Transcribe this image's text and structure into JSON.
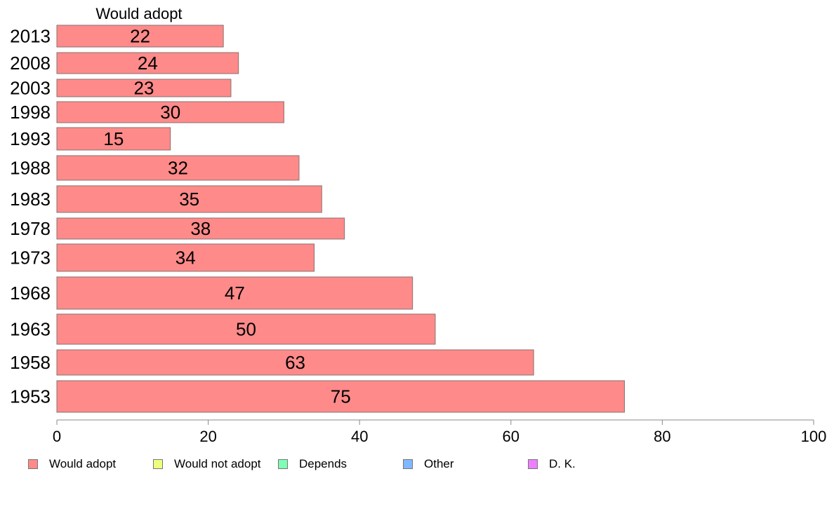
{
  "chart_data": {
    "type": "bar",
    "orientation": "horizontal",
    "series_title": "Would adopt",
    "categories": [
      "2013",
      "2008",
      "2003",
      "1998",
      "1993",
      "1988",
      "1983",
      "1978",
      "1973",
      "1968",
      "1963",
      "1958",
      "1953"
    ],
    "series": [
      {
        "name": "Would adopt",
        "values": [
          22,
          24,
          23,
          30,
          15,
          32,
          35,
          38,
          34,
          47,
          50,
          63,
          75
        ]
      }
    ],
    "data_labels": [
      "22",
      "24",
      "23",
      "30",
      "15",
      "32",
      "35",
      "38",
      "34",
      "47",
      "50",
      "63",
      "75"
    ],
    "xlim": [
      0,
      100
    ],
    "x_ticks": [
      "0",
      "20",
      "40",
      "60",
      "80",
      "100"
    ],
    "grid": false,
    "legend_position": "bottom",
    "legend": [
      {
        "label": "Would adopt",
        "color": "#ff8a8a"
      },
      {
        "label": "Would not adopt",
        "color": "#eeff80"
      },
      {
        "label": "Depends",
        "color": "#80ffb4"
      },
      {
        "label": "Other",
        "color": "#80b8ff"
      },
      {
        "label": "D. K.",
        "color": "#ee80ff"
      }
    ],
    "bar_color": "#ff8a8a"
  }
}
